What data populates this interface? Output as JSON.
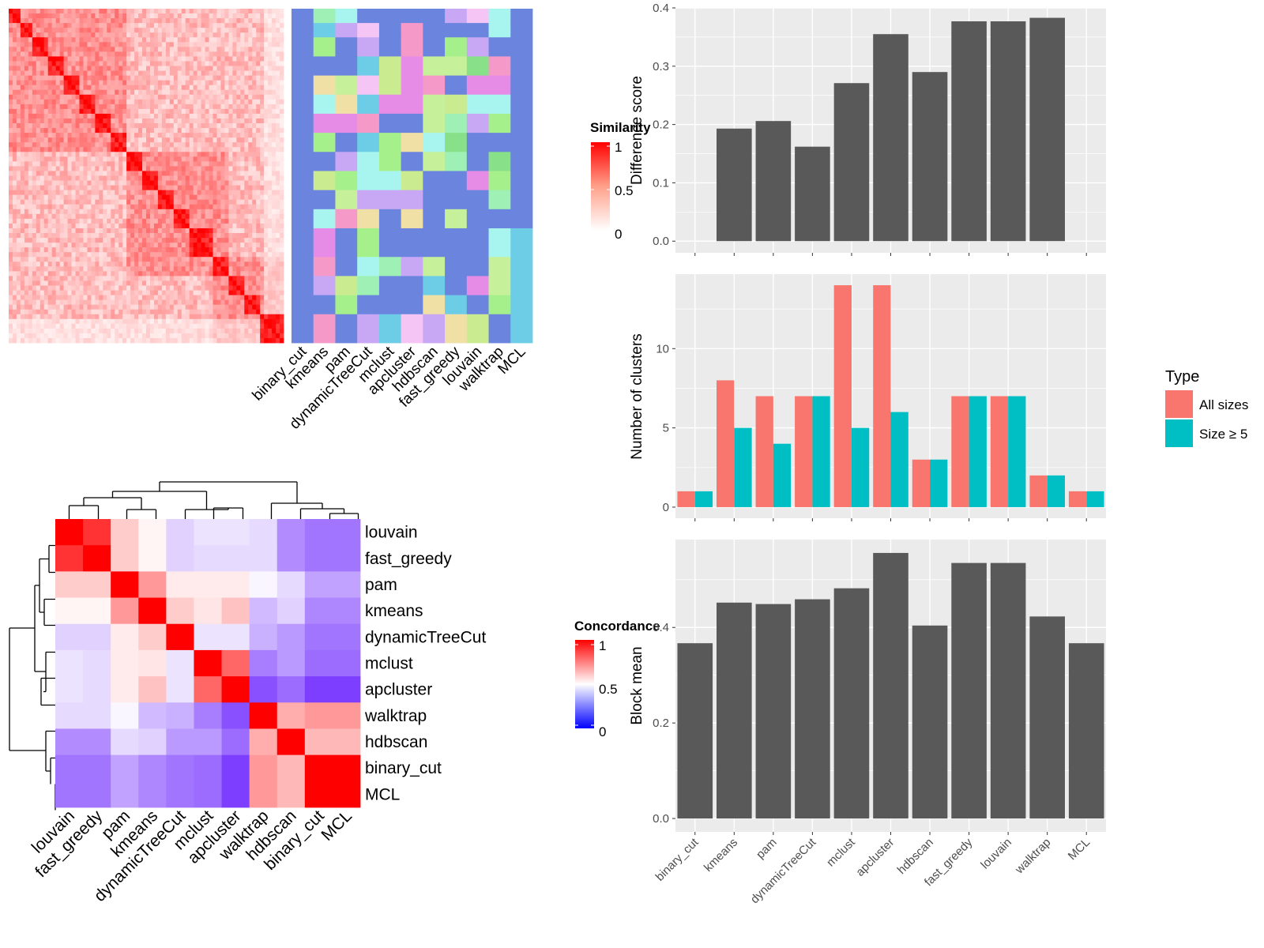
{
  "colors": {
    "panel_bg": "#ebebeb",
    "grid": "#ffffff",
    "bar_gray": "#595959",
    "all_sizes": "#f8766d",
    "size5": "#00bfc4",
    "sim_high": "#ff0000",
    "sim_low": "#ffffff",
    "conc_high": "#ff0000",
    "conc_mid": "#ffffff",
    "conc_low": "#0000ff",
    "membership_base": "#6b84dd"
  },
  "heatmap1": {
    "legend_title": "Similarity",
    "legend_ticks": [
      "1",
      "0.5",
      "0"
    ],
    "membership_columns": [
      "binary_cut",
      "kmeans",
      "pam",
      "dynamicTreeCut",
      "mclust",
      "apcluster",
      "hdbscan",
      "fast_greedy",
      "louvain",
      "walktrap",
      "MCL"
    ]
  },
  "heatmap2": {
    "legend_title": "Concordance",
    "legend_ticks": [
      "1",
      "0.5",
      "0"
    ],
    "row_labels": [
      "louvain",
      "fast_greedy",
      "pam",
      "kmeans",
      "dynamicTreeCut",
      "mclust",
      "apcluster",
      "walktrap",
      "hdbscan",
      "binary_cut",
      "MCL"
    ],
    "col_labels": [
      "louvain",
      "fast_greedy",
      "pam",
      "kmeans",
      "dynamicTreeCut",
      "mclust",
      "apcluster",
      "walktrap",
      "hdbscan",
      "binary_cut",
      "MCL"
    ]
  },
  "chart_data": [
    {
      "type": "heatmap",
      "legend": "Concordance",
      "rows": [
        "louvain",
        "fast_greedy",
        "pam",
        "kmeans",
        "dynamicTreeCut",
        "mclust",
        "apcluster",
        "walktrap",
        "hdbscan",
        "binary_cut",
        "MCL"
      ],
      "cols": [
        "louvain",
        "fast_greedy",
        "pam",
        "kmeans",
        "dynamicTreeCut",
        "mclust",
        "apcluster",
        "walktrap",
        "hdbscan",
        "binary_cut",
        "MCL"
      ],
      "values": [
        [
          1.0,
          0.9,
          0.6,
          0.52,
          0.4,
          0.44,
          0.44,
          0.42,
          0.25,
          0.2,
          0.2
        ],
        [
          0.9,
          1.0,
          0.6,
          0.52,
          0.4,
          0.42,
          0.42,
          0.42,
          0.25,
          0.2,
          0.2
        ],
        [
          0.6,
          0.6,
          1.0,
          0.7,
          0.54,
          0.54,
          0.54,
          0.48,
          0.42,
          0.3,
          0.3
        ],
        [
          0.52,
          0.52,
          0.7,
          1.0,
          0.6,
          0.55,
          0.62,
          0.35,
          0.4,
          0.24,
          0.24
        ],
        [
          0.4,
          0.4,
          0.54,
          0.6,
          1.0,
          0.44,
          0.44,
          0.33,
          0.28,
          0.2,
          0.2
        ],
        [
          0.44,
          0.42,
          0.54,
          0.55,
          0.44,
          1.0,
          0.8,
          0.22,
          0.28,
          0.18,
          0.18
        ],
        [
          0.44,
          0.42,
          0.54,
          0.62,
          0.44,
          0.8,
          1.0,
          0.12,
          0.18,
          0.08,
          0.08
        ],
        [
          0.42,
          0.42,
          0.48,
          0.35,
          0.33,
          0.22,
          0.12,
          1.0,
          0.66,
          0.7,
          0.7
        ],
        [
          0.25,
          0.25,
          0.42,
          0.4,
          0.28,
          0.28,
          0.18,
          0.66,
          1.0,
          0.64,
          0.64
        ],
        [
          0.2,
          0.2,
          0.3,
          0.24,
          0.2,
          0.18,
          0.08,
          0.7,
          0.64,
          1.0,
          1.0
        ],
        [
          0.2,
          0.2,
          0.3,
          0.24,
          0.2,
          0.18,
          0.08,
          0.7,
          0.64,
          1.0,
          1.0
        ]
      ]
    },
    {
      "type": "bar",
      "categories": [
        "binary_cut",
        "kmeans",
        "pam",
        "dynamicTreeCut",
        "mclust",
        "apcluster",
        "hdbscan",
        "fast_greedy",
        "louvain",
        "walktrap",
        "MCL"
      ],
      "values": [
        0.0,
        0.193,
        0.206,
        0.162,
        0.271,
        0.355,
        0.29,
        0.377,
        0.377,
        0.383,
        0.0
      ],
      "ylabel": "Difference score",
      "ylim": [
        -0.02,
        0.4
      ],
      "yticks": [
        0.0,
        0.1,
        0.2,
        0.3,
        0.4
      ]
    },
    {
      "type": "bar",
      "categories": [
        "binary_cut",
        "kmeans",
        "pam",
        "dynamicTreeCut",
        "mclust",
        "apcluster",
        "hdbscan",
        "fast_greedy",
        "louvain",
        "walktrap",
        "MCL"
      ],
      "series": [
        {
          "name": "All sizes",
          "values": [
            1,
            8,
            7,
            7,
            14,
            14,
            3,
            7,
            7,
            2,
            1
          ]
        },
        {
          "name": "Size ≥ 5",
          "values": [
            1,
            5,
            4,
            7,
            5,
            6,
            3,
            7,
            7,
            2,
            1
          ]
        }
      ],
      "ylabel": "Number of clusters",
      "ylim": [
        -0.7,
        14.7
      ],
      "yticks": [
        0,
        5,
        10
      ],
      "legend_title": "Type",
      "legend_position": "right"
    },
    {
      "type": "bar",
      "categories": [
        "binary_cut",
        "kmeans",
        "pam",
        "dynamicTreeCut",
        "mclust",
        "apcluster",
        "hdbscan",
        "fast_greedy",
        "louvain",
        "walktrap",
        "MCL"
      ],
      "values": [
        0.367,
        0.452,
        0.449,
        0.459,
        0.482,
        0.556,
        0.404,
        0.535,
        0.535,
        0.423,
        0.367
      ],
      "ylabel": "Block mean",
      "ylim": [
        -0.028,
        0.584
      ],
      "yticks": [
        0.0,
        0.2,
        0.4
      ]
    }
  ]
}
